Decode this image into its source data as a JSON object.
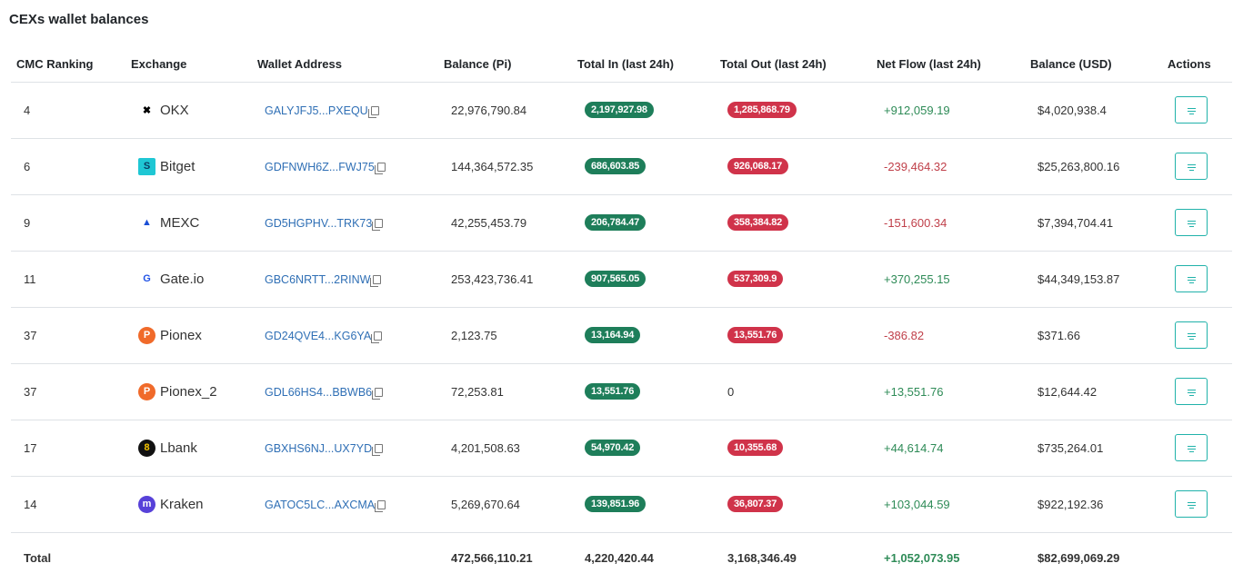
{
  "title": "CEXs wallet balances",
  "headers": [
    "CMC Ranking",
    "Exchange",
    "Wallet Address",
    "Balance (Pi)",
    "Total In (last 24h)",
    "Total Out (last 24h)",
    "Net Flow (last 24h)",
    "Balance (USD)",
    "Actions"
  ],
  "colors": {
    "in": "#1e7e5a",
    "out": "#d0334a",
    "positive": "#2e8b57",
    "negative": "#c0404a",
    "link": "#2f6fb5",
    "action": "#20b2aa"
  },
  "rows": [
    {
      "rank": "4",
      "exchange": "OKX",
      "icon": "okx-logo-icon",
      "wallet": "GALYJFJ5...PXEQU",
      "balance": "22,976,790.84",
      "in": "2,197,927.98",
      "out": "1,285,868.79",
      "net": "+912,059.19",
      "usd": "$4,020,938.4"
    },
    {
      "rank": "6",
      "exchange": "Bitget",
      "icon": "bitget-logo-icon",
      "wallet": "GDFNWH6Z...FWJ75",
      "balance": "144,364,572.35",
      "in": "686,603.85",
      "out": "926,068.17",
      "net": "-239,464.32",
      "usd": "$25,263,800.16"
    },
    {
      "rank": "9",
      "exchange": "MEXC",
      "icon": "mexc-logo-icon",
      "wallet": "GD5HGPHV...TRK73",
      "balance": "42,255,453.79",
      "in": "206,784.47",
      "out": "358,384.82",
      "net": "-151,600.34",
      "usd": "$7,394,704.41"
    },
    {
      "rank": "11",
      "exchange": "Gate.io",
      "icon": "gateio-logo-icon",
      "wallet": "GBC6NRTT...2RINW",
      "balance": "253,423,736.41",
      "in": "907,565.05",
      "out": "537,309.9",
      "net": "+370,255.15",
      "usd": "$44,349,153.87"
    },
    {
      "rank": "37",
      "exchange": "Pionex",
      "icon": "pionex-logo-icon",
      "wallet": "GD24QVE4...KG6YA",
      "balance": "2,123.75",
      "in": "13,164.94",
      "out": "13,551.76",
      "net": "-386.82",
      "usd": "$371.66"
    },
    {
      "rank": "37",
      "exchange": "Pionex_2",
      "icon": "pionex-logo-icon",
      "wallet": "GDL66HS4...BBWB6",
      "balance": "72,253.81",
      "in": "13,551.76",
      "out": "0",
      "net": "+13,551.76",
      "usd": "$12,644.42"
    },
    {
      "rank": "17",
      "exchange": "Lbank",
      "icon": "lbank-logo-icon",
      "wallet": "GBXHS6NJ...UX7YD",
      "balance": "4,201,508.63",
      "in": "54,970.42",
      "out": "10,355.68",
      "net": "+44,614.74",
      "usd": "$735,264.01"
    },
    {
      "rank": "14",
      "exchange": "Kraken",
      "icon": "kraken-logo-icon",
      "wallet": "GATOC5LC...AXCMA",
      "balance": "5,269,670.64",
      "in": "139,851.96",
      "out": "36,807.37",
      "net": "+103,044.59",
      "usd": "$922,192.36"
    }
  ],
  "total": {
    "label": "Total",
    "balance": "472,566,110.21",
    "in": "4,220,420.44",
    "out": "3,168,346.49",
    "net": "+1,052,073.95",
    "usd": "$82,699,069.29"
  }
}
